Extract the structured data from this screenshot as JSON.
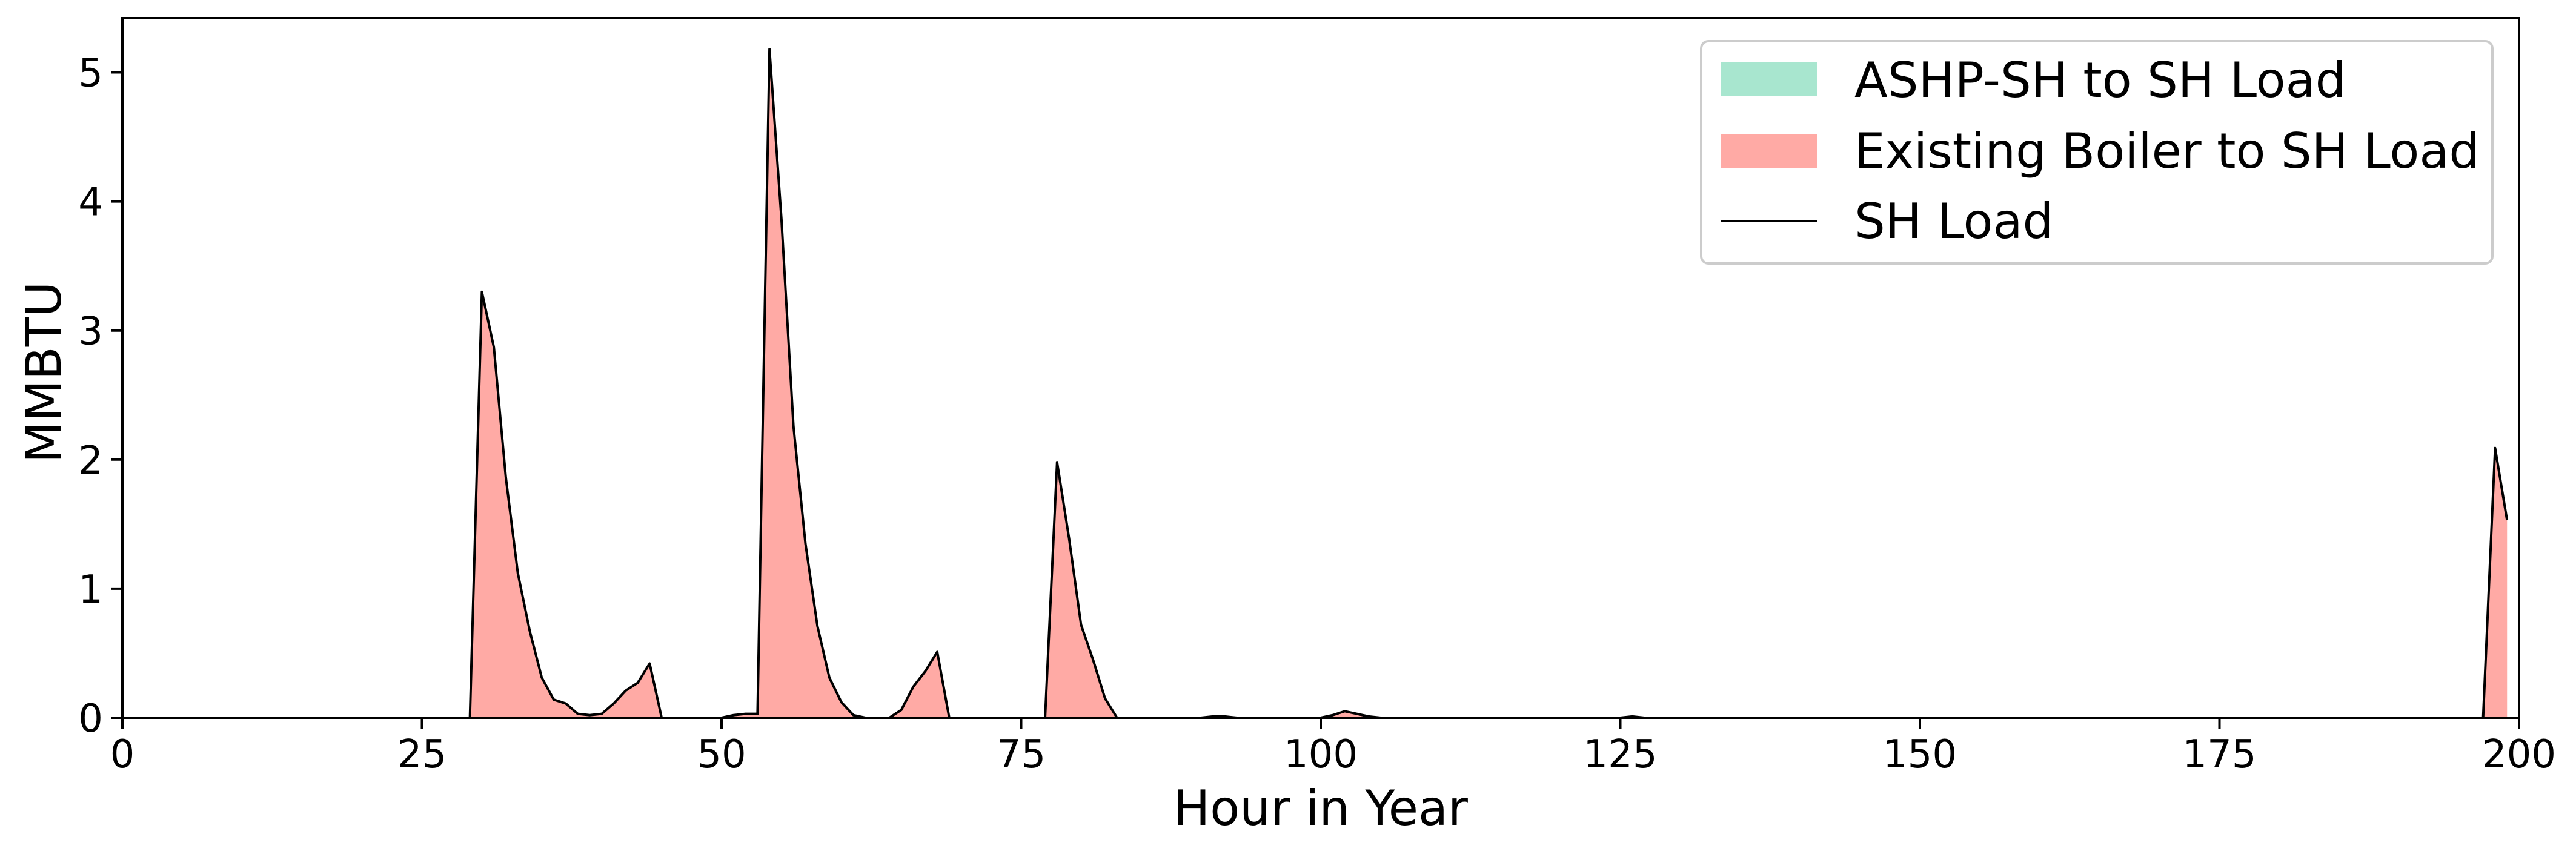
{
  "chart_data": {
    "type": "area",
    "title": "",
    "xlabel": "Hour in Year",
    "ylabel": "MMBTU",
    "xlim": [
      0,
      200
    ],
    "ylim": [
      0,
      5.42
    ],
    "xticks": [
      "0",
      "25",
      "50",
      "75",
      "100",
      "125",
      "150",
      "175",
      "200"
    ],
    "yticks": [
      "0",
      "1",
      "2",
      "3",
      "4",
      "5"
    ],
    "grid": false,
    "legend_position": "top-right",
    "legend": [
      "ASHP-SH to SH Load",
      "Existing Boiler to SH Load",
      "SH Load"
    ],
    "colors": {
      "ashp": "#a8e6cf",
      "boiler": "#ffaaa5",
      "load_line": "#000000"
    },
    "series": [
      {
        "name": "ASHP-SH to SH Load",
        "x": [
          0,
          199
        ],
        "values": [
          0,
          0
        ]
      },
      {
        "name": "Existing Boiler to SH Load",
        "x": [
          0,
          29,
          30,
          31,
          32,
          33,
          34,
          35,
          36,
          37,
          38,
          39,
          40,
          41,
          42,
          43,
          44,
          45,
          46,
          50,
          51,
          52,
          53,
          54,
          55,
          56,
          57,
          58,
          59,
          60,
          61,
          62,
          63,
          64,
          65,
          66,
          67,
          68,
          69,
          70,
          77,
          78,
          79,
          80,
          81,
          82,
          83,
          84,
          90,
          91,
          92,
          93,
          100,
          101,
          102,
          103,
          104,
          105,
          125,
          126,
          127,
          197,
          198,
          199
        ],
        "values": [
          0,
          0,
          3.3,
          2.87,
          1.86,
          1.12,
          0.67,
          0.31,
          0.14,
          0.11,
          0.03,
          0.02,
          0.03,
          0.11,
          0.21,
          0.27,
          0.42,
          0,
          0,
          0,
          0.02,
          0.03,
          0.03,
          5.18,
          3.86,
          2.26,
          1.35,
          0.71,
          0.31,
          0.12,
          0.02,
          0,
          0,
          0,
          0.06,
          0.24,
          0.36,
          0.51,
          0,
          0,
          0,
          1.98,
          1.39,
          0.72,
          0.45,
          0.15,
          0,
          0,
          0,
          0.01,
          0.01,
          0,
          0,
          0.02,
          0.05,
          0.03,
          0.01,
          0,
          0,
          0.01,
          0,
          0,
          2.09,
          1.53
        ]
      },
      {
        "name": "SH Load",
        "x": [
          0,
          29,
          30,
          31,
          32,
          33,
          34,
          35,
          36,
          37,
          38,
          39,
          40,
          41,
          42,
          43,
          44,
          45,
          46,
          50,
          51,
          52,
          53,
          54,
          55,
          56,
          57,
          58,
          59,
          60,
          61,
          62,
          63,
          64,
          65,
          66,
          67,
          68,
          69,
          70,
          77,
          78,
          79,
          80,
          81,
          82,
          83,
          84,
          90,
          91,
          92,
          93,
          100,
          101,
          102,
          103,
          104,
          105,
          125,
          126,
          127,
          197,
          198,
          199
        ],
        "values": [
          0,
          0,
          3.3,
          2.87,
          1.86,
          1.12,
          0.67,
          0.31,
          0.14,
          0.11,
          0.03,
          0.02,
          0.03,
          0.11,
          0.21,
          0.27,
          0.42,
          0,
          0,
          0,
          0.02,
          0.03,
          0.03,
          5.18,
          3.86,
          2.26,
          1.35,
          0.71,
          0.31,
          0.12,
          0.02,
          0,
          0,
          0,
          0.06,
          0.24,
          0.36,
          0.51,
          0,
          0,
          0,
          1.98,
          1.39,
          0.72,
          0.45,
          0.15,
          0,
          0,
          0,
          0.01,
          0.01,
          0,
          0,
          0.02,
          0.05,
          0.03,
          0.01,
          0,
          0,
          0.01,
          0,
          0,
          2.09,
          1.53
        ]
      }
    ]
  }
}
